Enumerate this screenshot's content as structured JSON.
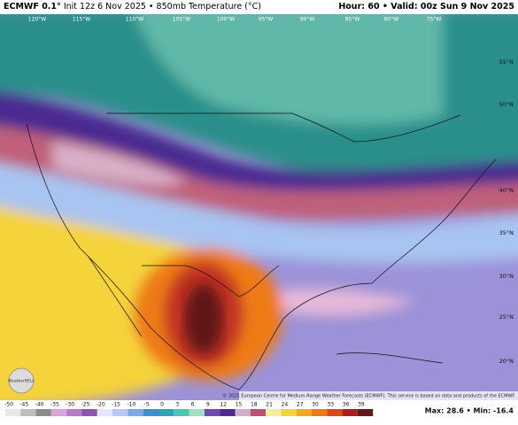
{
  "header": {
    "model": "ECMWF 0.1°",
    "run": "Init 12z 6 Nov 2025 • 850mb Temperature (°C)",
    "valid": "Hour: 60 • Valid: 00z Sun 9 Nov 2025"
  },
  "map": {
    "longitude_labels": [
      "120°W",
      "115°W",
      "110°W",
      "105°W",
      "100°W",
      "95°W",
      "90°W",
      "85°W",
      "80°W",
      "75°W"
    ],
    "latitude_labels": [
      "55°N",
      "50°N",
      "40°N",
      "35°N",
      "30°N",
      "25°N",
      "20°N"
    ],
    "credit": "© 2025 European Centre for Medium-Range Weather Forecasts (ECMWF). This service is based on data and products of the ECMWF.",
    "logo": "WeatherBELL"
  },
  "colorbar": {
    "ticks": [
      -50,
      -45,
      -40,
      -35,
      -30,
      -25,
      -20,
      -15,
      -10,
      -5,
      0,
      3,
      6,
      9,
      12,
      15,
      18,
      21,
      24,
      27,
      30,
      33,
      36,
      39
    ],
    "colors": [
      "#e8e8e8",
      "#bdbdbd",
      "#8c8c8c",
      "#d9a6d9",
      "#b77ac4",
      "#8a57b0",
      "#e6e6ff",
      "#b4c8f5",
      "#7fa8e8",
      "#3d8fd0",
      "#2aa6b8",
      "#4cc4b0",
      "#9ee0c0",
      "#6b4bb0",
      "#4a2a90",
      "#d0b0c8",
      "#c05070",
      "#f0f0a0",
      "#f5d33a",
      "#f5a623",
      "#ee7a14",
      "#d84a18",
      "#a82020",
      "#601818"
    ]
  },
  "stats": "Max: 28.6 • Min: -16.4"
}
